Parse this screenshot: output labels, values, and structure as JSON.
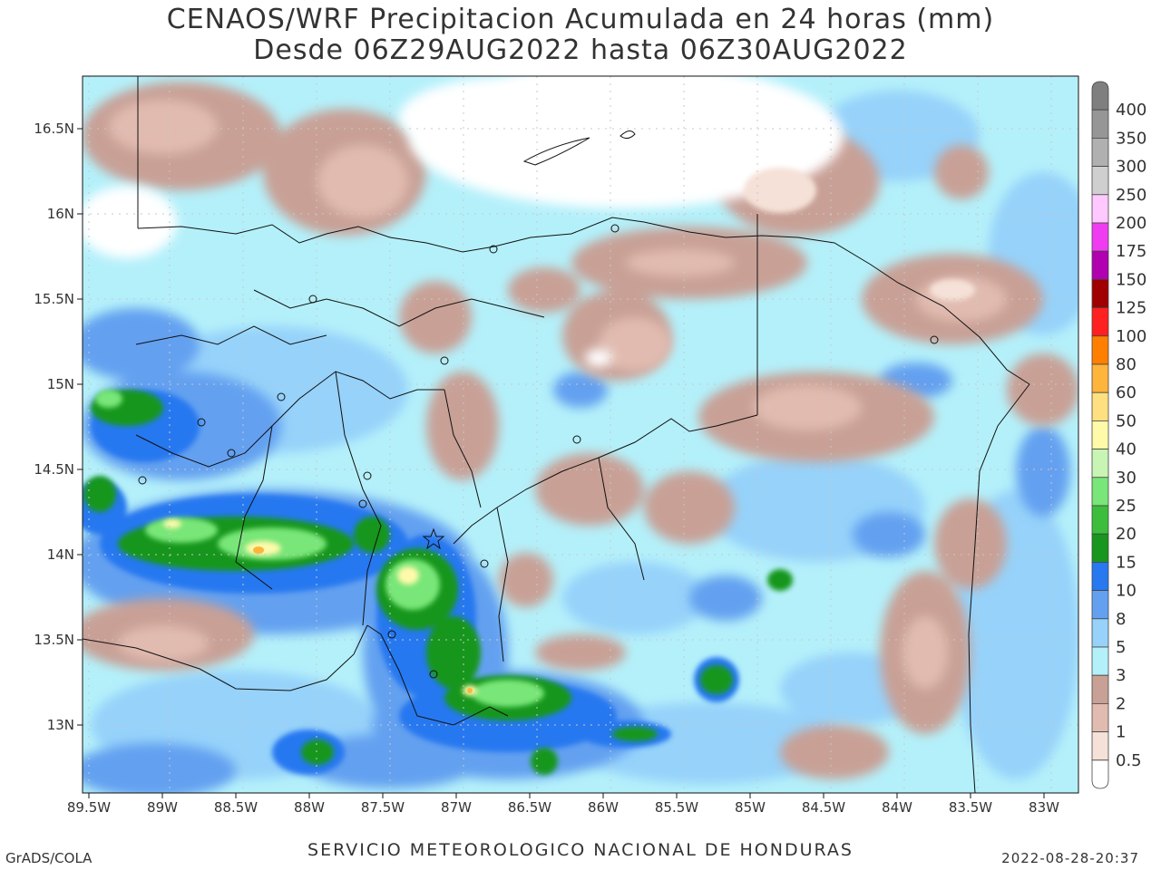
{
  "title": {
    "line1": "CENAOS/WRF Precipitacion Acumulada en 24 horas (mm)",
    "line2": "Desde 06Z29AUG2022 hasta 06Z30AUG2022"
  },
  "axes": {
    "lon_ticks": [
      "89.5W",
      "89W",
      "88.5W",
      "88W",
      "87.5W",
      "87W",
      "86.5W",
      "86W",
      "85.5W",
      "85W",
      "84.5W",
      "84W",
      "83.5W",
      "83W"
    ],
    "lat_ticks": [
      "16.5N",
      "16N",
      "15.5N",
      "15N",
      "14.5N",
      "14N",
      "13.5N",
      "13N"
    ],
    "lon_range": [
      -89.5,
      -82.8
    ],
    "lat_range": [
      12.6,
      16.8
    ]
  },
  "colorbar": {
    "labels": [
      "400",
      "350",
      "300",
      "250",
      "200",
      "175",
      "150",
      "125",
      "100",
      "80",
      "60",
      "50",
      "40",
      "30",
      "25",
      "20",
      "15",
      "10",
      "8",
      "5",
      "3",
      "2",
      "1",
      "0.5"
    ],
    "colors": [
      "#7f7f7f",
      "#969696",
      "#b0b0b0",
      "#cfcfcf",
      "#ffc8ff",
      "#f03cf0",
      "#b000b0",
      "#a00000",
      "#ff2020",
      "#ff7f00",
      "#ffb43c",
      "#ffe080",
      "#fffaaa",
      "#c8f5b4",
      "#78e678",
      "#3cbe3c",
      "#18961e",
      "#2878f0",
      "#64a0f0",
      "#96d2fa",
      "#b4f0fa",
      "#c8a096",
      "#e1bbb0",
      "#f5e1d7",
      "#ffffff"
    ]
  },
  "footer": {
    "credit": "GrADS/COLA",
    "agency": "SERVICIO METEOROLOGICO NACIONAL DE HONDURAS",
    "timestamp": "2022-08-28-20:37"
  }
}
